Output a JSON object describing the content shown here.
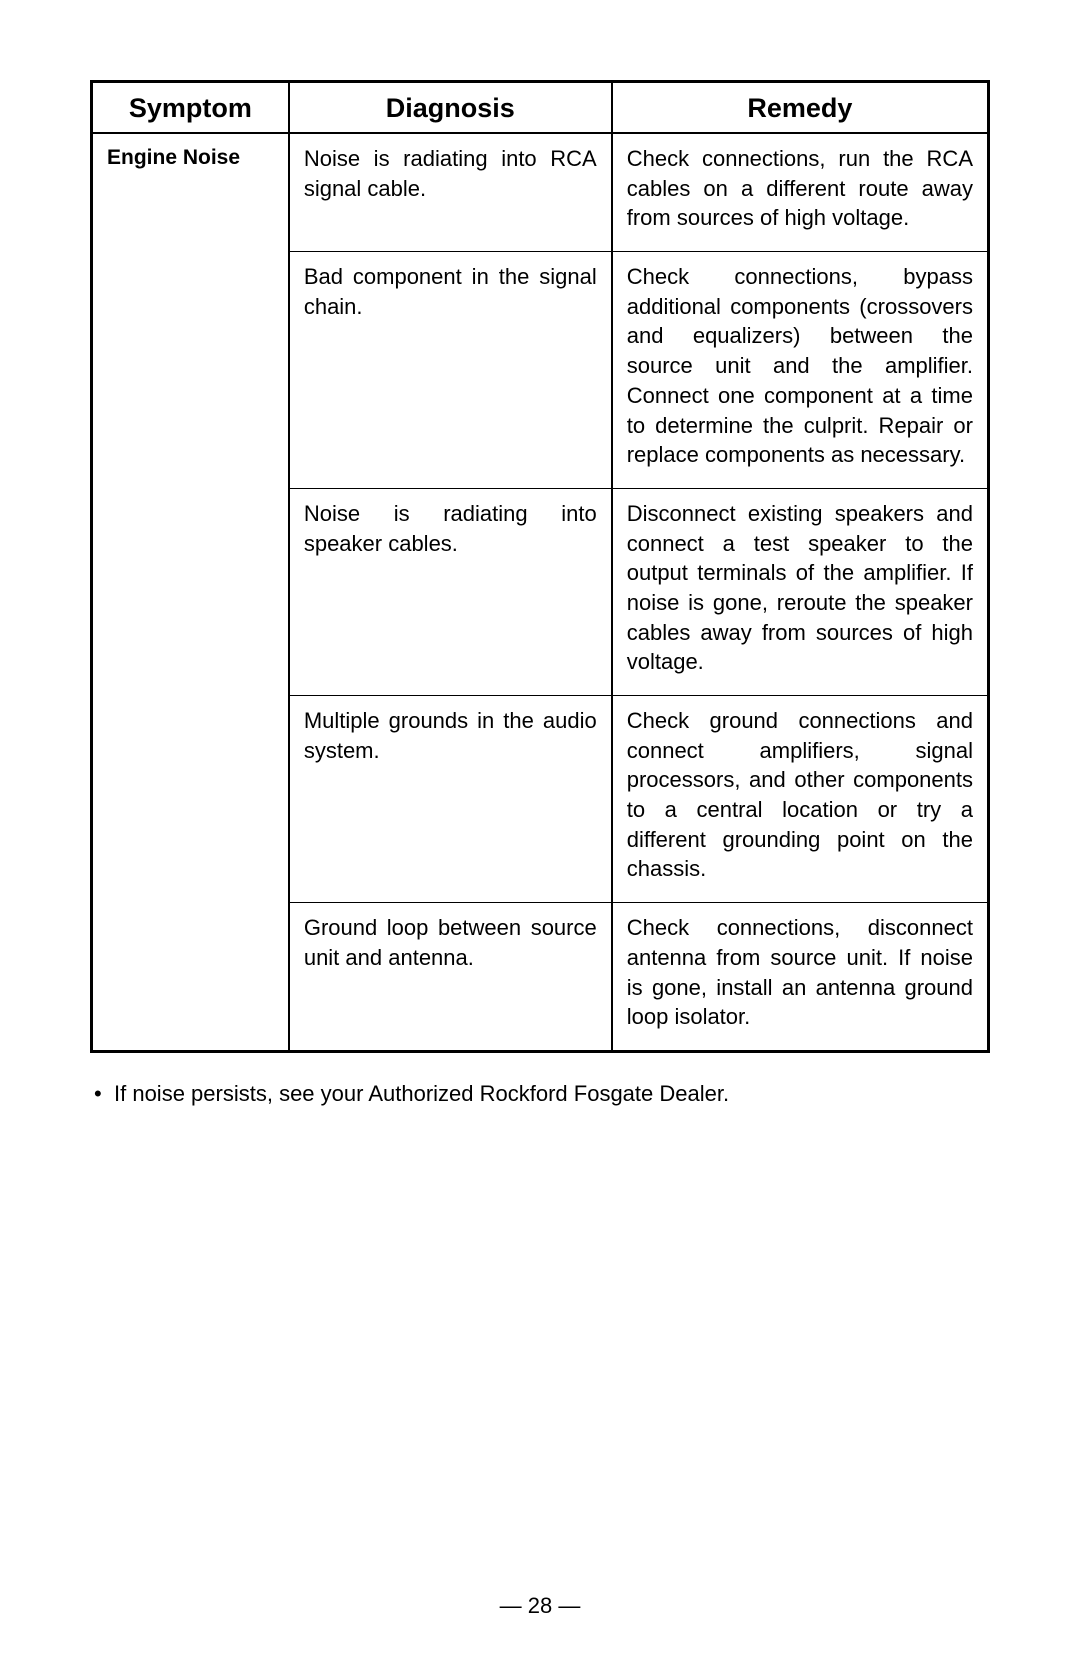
{
  "table": {
    "headers": [
      "Symptom",
      "Diagnosis",
      "Remedy"
    ],
    "col_widths": [
      "22%",
      "36%",
      "42%"
    ],
    "symptom": "Engine Noise",
    "rows": [
      {
        "diagnosis": "Noise is radiating into RCA signal cable.",
        "remedy": "Check connections, run the RCA cables on a different route away from sources of high voltage."
      },
      {
        "diagnosis": "Bad component in the signal chain.",
        "remedy": "Check connections, bypass additional components (crossovers and equalizers) between the source unit and the amplifier. Connect one component at a time to determine the culprit. Repair or replace components as necessary."
      },
      {
        "diagnosis": "Noise is radiating into speaker cables.",
        "remedy": "Disconnect existing speakers and connect a test speaker to the output terminals of the amplifier. If noise is gone, reroute the speaker cables away from sources of high voltage."
      },
      {
        "diagnosis": "Multiple grounds in the audio system.",
        "remedy": "Check ground connections and connect amplifiers, signal processors, and other components to a central location or try a different grounding point on the chassis."
      },
      {
        "diagnosis": "Ground loop between source unit and antenna.",
        "remedy": "Check connections, disconnect antenna from source unit. If noise is gone, install an antenna ground loop isolator."
      }
    ]
  },
  "footnote": "If noise persists, see your Authorized Rockford Fosgate Dealer.",
  "page_number": "— 28 —",
  "colors": {
    "background": "#ffffff",
    "text": "#000000",
    "border": "#000000"
  },
  "typography": {
    "header_fontsize_pt": 20,
    "body_fontsize_pt": 16,
    "font_family": "Arial"
  }
}
